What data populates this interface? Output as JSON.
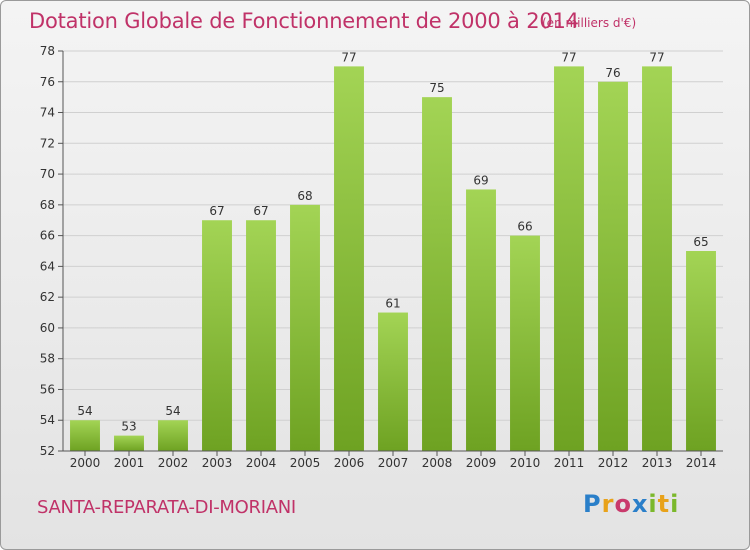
{
  "chart_data": {
    "type": "bar",
    "title": "Dotation Globale de Fonctionnement de 2000 à 2014",
    "subtitle": "(en milliers d'€)",
    "categories": [
      "2000",
      "2001",
      "2002",
      "2003",
      "2004",
      "2005",
      "2006",
      "2007",
      "2008",
      "2009",
      "2010",
      "2011",
      "2012",
      "2013",
      "2014"
    ],
    "values": [
      54,
      53,
      54,
      67,
      67,
      68,
      77,
      61,
      75,
      69,
      66,
      77,
      76,
      77,
      65
    ],
    "ylim": [
      52,
      78
    ],
    "yticks": [
      52,
      54,
      56,
      58,
      60,
      62,
      64,
      66,
      68,
      70,
      72,
      74,
      76,
      78
    ],
    "xlabel": "",
    "ylabel": "",
    "grid": true,
    "colors": {
      "bar_light": "#a3d455",
      "bar_dark": "#6ea222",
      "grid": "#d0d0d0",
      "text": "#333333",
      "accent": "#c03268"
    }
  },
  "footer": {
    "commune": "SANTA-REPARATA-DI-MORIANI",
    "logo": [
      "P",
      "r",
      "o",
      "x",
      "i",
      "t",
      "i"
    ]
  }
}
